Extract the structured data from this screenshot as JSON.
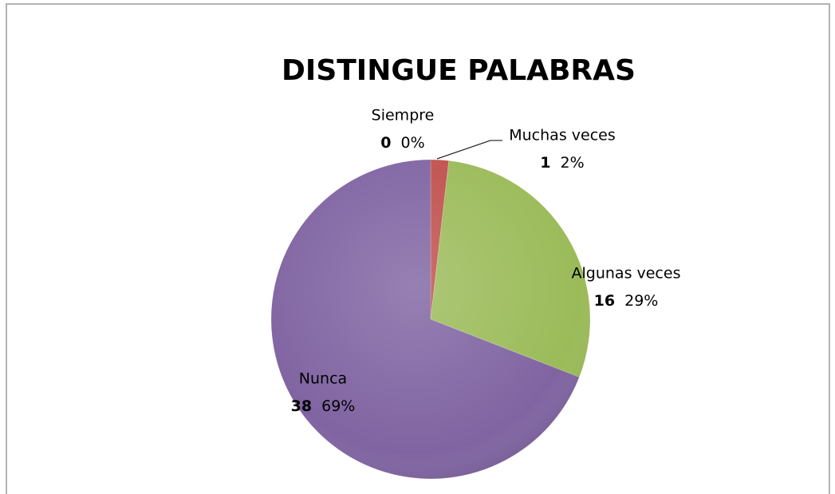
{
  "chart_data": {
    "type": "pie",
    "title": "DISTINGUE PALABRAS",
    "categories": [
      "Siempre",
      "Muchas veces",
      "Algunas veces",
      "Nunca"
    ],
    "values": [
      0,
      1,
      16,
      38
    ],
    "percent_labels": [
      "0%",
      "2%",
      "29%",
      "69%"
    ],
    "colors": [
      "#4f81bd",
      "#c0504d",
      "#9bbb59",
      "#8064a2"
    ]
  }
}
